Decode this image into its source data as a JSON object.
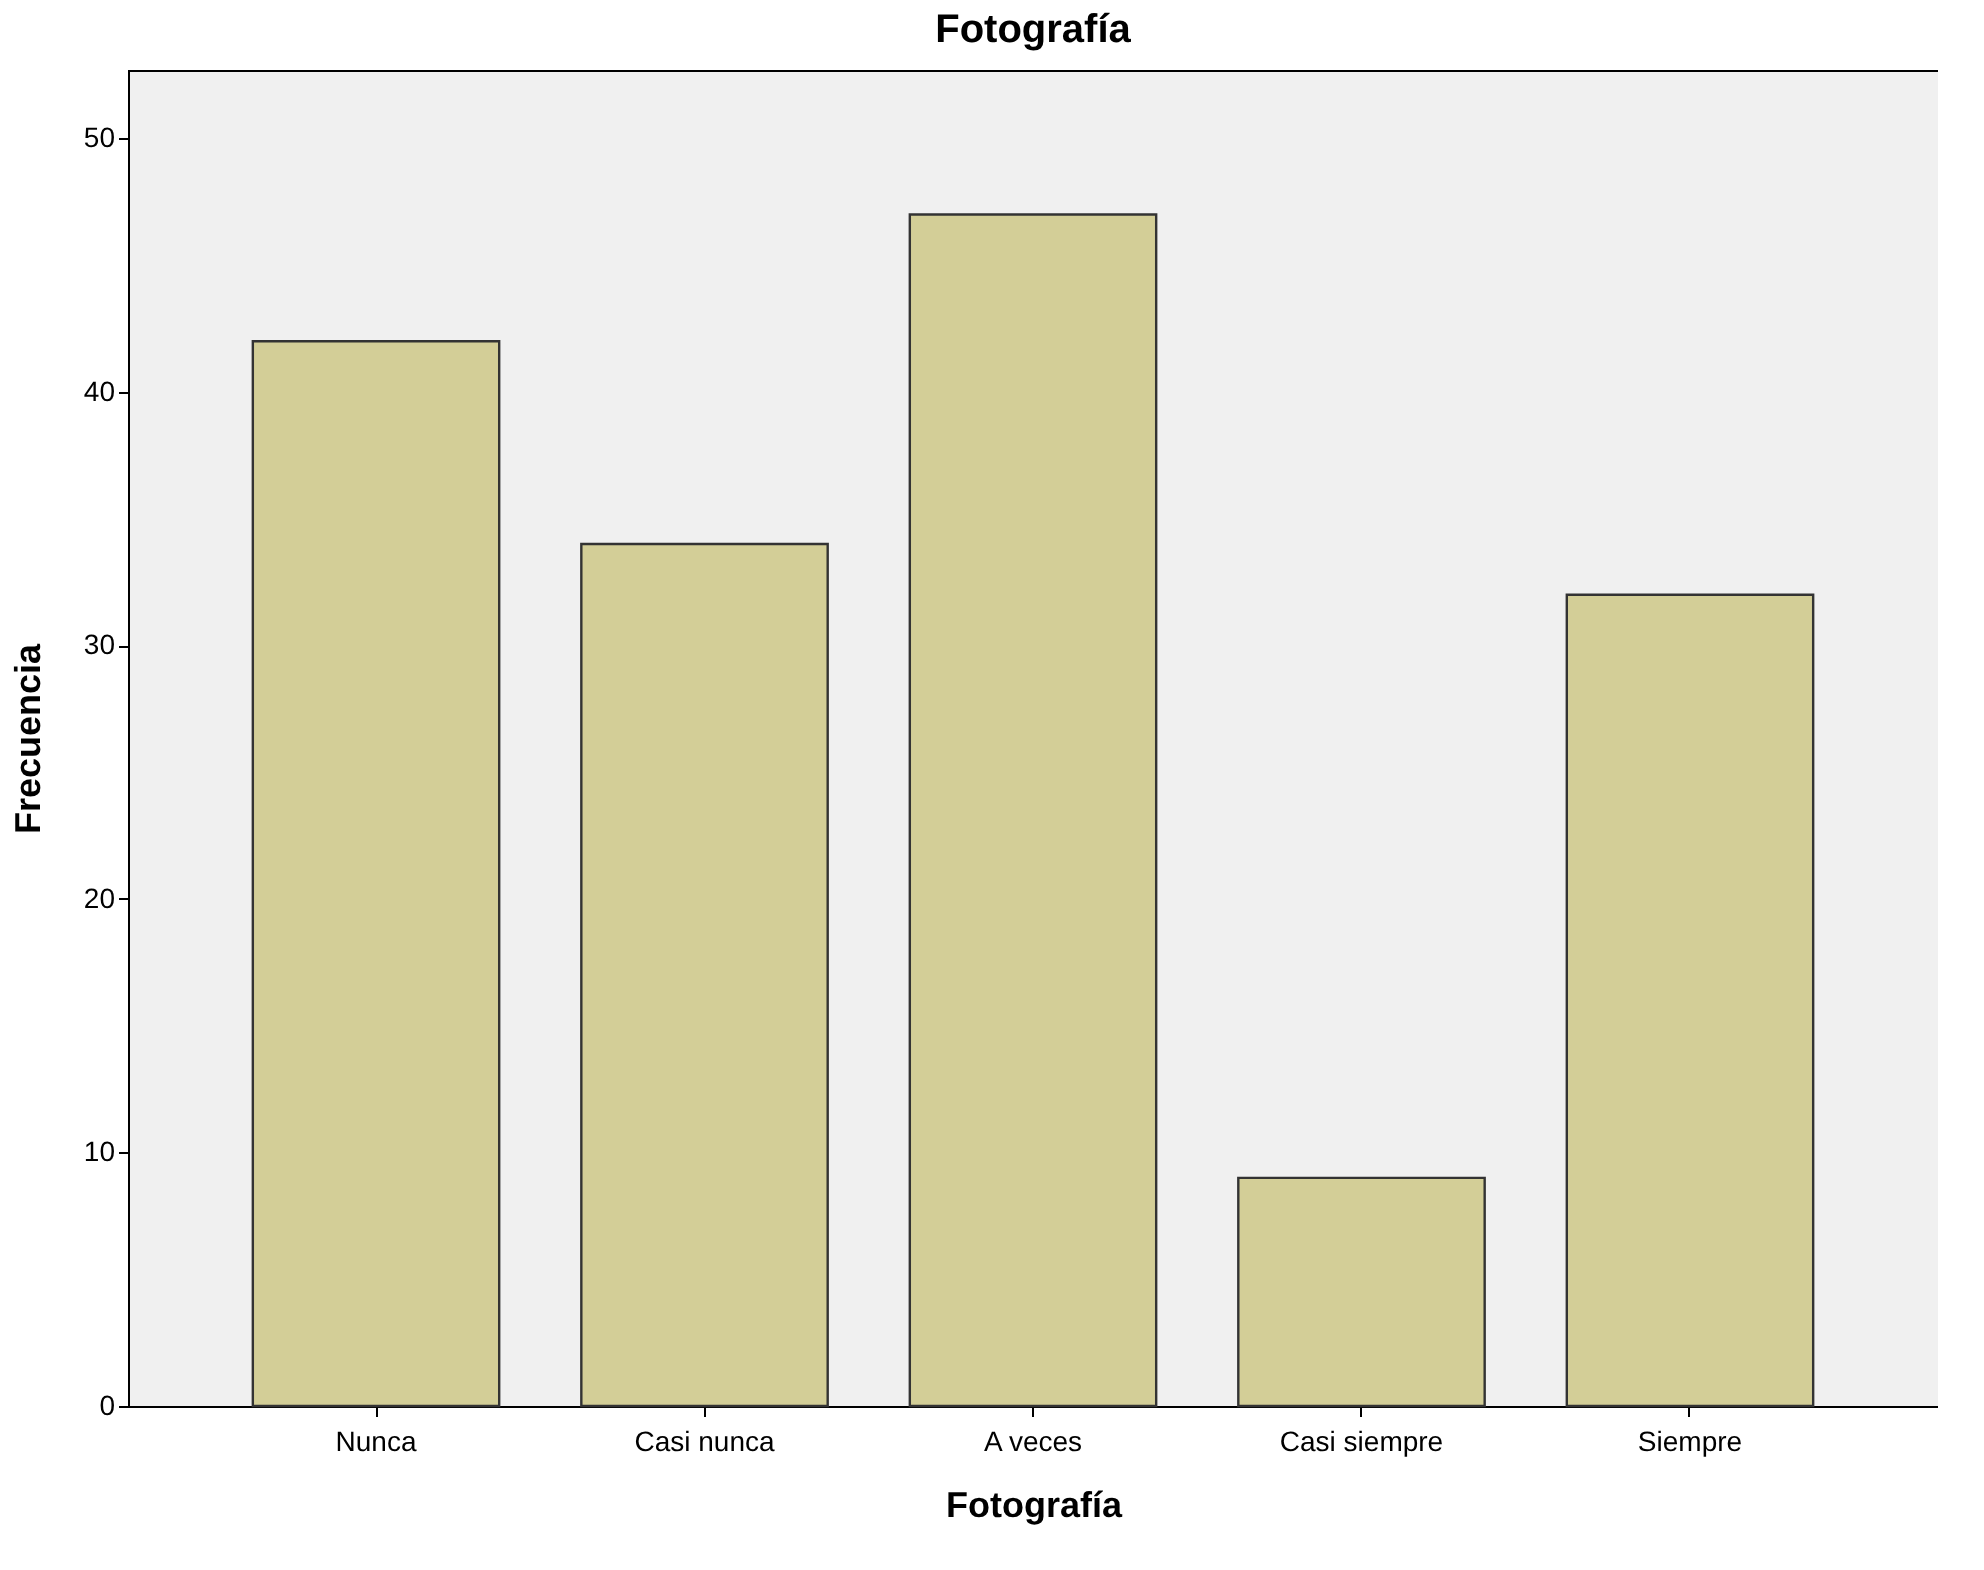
{
  "chart_data": {
    "type": "bar",
    "title": "Fotografía",
    "xlabel": "Fotografía",
    "ylabel": "Frecuencia",
    "categories": [
      "Nunca",
      "Casi nunca",
      "A veces",
      "Casi siempre",
      "Siempre"
    ],
    "values": [
      42,
      34,
      47,
      9,
      32
    ],
    "color": "#d3ce97",
    "ylim": [
      0,
      52.7
    ],
    "yticks": [
      0,
      10,
      20,
      30,
      40,
      50
    ]
  }
}
